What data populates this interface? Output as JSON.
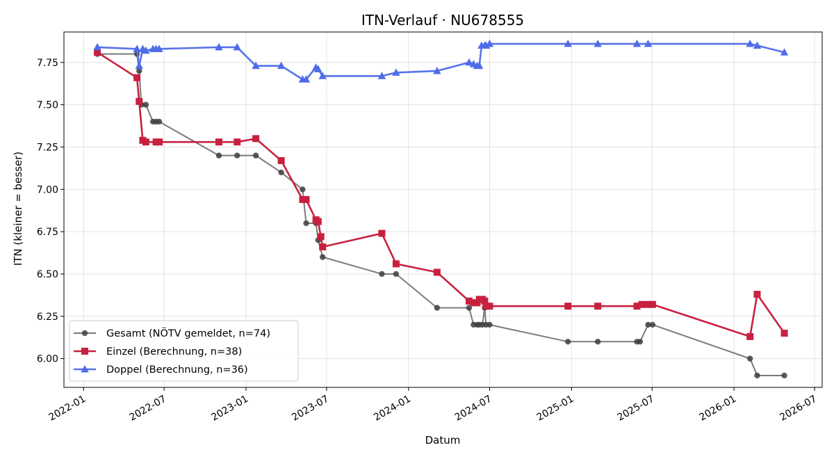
{
  "chart_data": {
    "type": "line",
    "title": "ITN-Verlauf · NU678555",
    "xlabel": "Datum",
    "ylabel": "ITN  (kleiner = besser)",
    "x_axis_type": "date",
    "xlim": [
      "2021-11-18",
      "2026-07-18"
    ],
    "ylim": [
      5.83,
      7.93
    ],
    "x_ticks": [
      {
        "date": "2022-01-01",
        "label": "2022-01"
      },
      {
        "date": "2022-07-01",
        "label": "2022-07"
      },
      {
        "date": "2023-01-01",
        "label": "2023-01"
      },
      {
        "date": "2023-07-01",
        "label": "2023-07"
      },
      {
        "date": "2024-01-01",
        "label": "2024-01"
      },
      {
        "date": "2024-07-01",
        "label": "2024-07"
      },
      {
        "date": "2025-01-01",
        "label": "2025-01"
      },
      {
        "date": "2025-07-01",
        "label": "2025-07"
      },
      {
        "date": "2026-01-01",
        "label": "2026-01"
      },
      {
        "date": "2026-07-01",
        "label": "2026-07"
      }
    ],
    "y_ticks": [
      {
        "value": 6.0,
        "label": "6.00"
      },
      {
        "value": 6.25,
        "label": "6.25"
      },
      {
        "value": 6.5,
        "label": "6.50"
      },
      {
        "value": 6.75,
        "label": "6.75"
      },
      {
        "value": 7.0,
        "label": "7.00"
      },
      {
        "value": 7.25,
        "label": "7.25"
      },
      {
        "value": 7.5,
        "label": "7.50"
      },
      {
        "value": 7.75,
        "label": "7.75"
      }
    ],
    "grid": true,
    "legend_position": "lower-left",
    "series": [
      {
        "name": "Gesamt (NÖTV gemeldet, n=74)",
        "color": "#404040",
        "line_color": "#7a7a7a",
        "marker": "circle",
        "points": [
          {
            "x": "2022-02-01",
            "y": 7.8
          },
          {
            "x": "2022-05-01",
            "y": 7.8
          },
          {
            "x": "2022-05-06",
            "y": 7.7
          },
          {
            "x": "2022-05-11",
            "y": 7.5
          },
          {
            "x": "2022-05-21",
            "y": 7.5
          },
          {
            "x": "2022-06-06",
            "y": 7.4
          },
          {
            "x": "2022-06-13",
            "y": 7.4
          },
          {
            "x": "2022-06-20",
            "y": 7.4
          },
          {
            "x": "2022-11-01",
            "y": 7.2
          },
          {
            "x": "2022-12-12",
            "y": 7.2
          },
          {
            "x": "2023-01-23",
            "y": 7.2
          },
          {
            "x": "2023-03-21",
            "y": 7.1
          },
          {
            "x": "2023-05-08",
            "y": 7.0
          },
          {
            "x": "2023-05-16",
            "y": 6.8
          },
          {
            "x": "2023-06-07",
            "y": 6.8
          },
          {
            "x": "2023-06-12",
            "y": 6.7
          },
          {
            "x": "2023-06-22",
            "y": 6.6
          },
          {
            "x": "2023-11-02",
            "y": 6.5
          },
          {
            "x": "2023-12-04",
            "y": 6.5
          },
          {
            "x": "2024-03-05",
            "y": 6.3
          },
          {
            "x": "2024-05-16",
            "y": 6.3
          },
          {
            "x": "2024-05-26",
            "y": 6.2
          },
          {
            "x": "2024-06-03",
            "y": 6.2
          },
          {
            "x": "2024-06-08",
            "y": 6.2
          },
          {
            "x": "2024-06-15",
            "y": 6.2
          },
          {
            "x": "2024-06-20",
            "y": 6.3
          },
          {
            "x": "2024-06-23",
            "y": 6.2
          },
          {
            "x": "2024-07-01",
            "y": 6.2
          },
          {
            "x": "2024-12-24",
            "y": 6.1
          },
          {
            "x": "2025-03-01",
            "y": 6.1
          },
          {
            "x": "2025-05-28",
            "y": 6.1
          },
          {
            "x": "2025-06-04",
            "y": 6.1
          },
          {
            "x": "2025-06-22",
            "y": 6.2
          },
          {
            "x": "2025-07-02",
            "y": 6.2
          },
          {
            "x": "2026-02-06",
            "y": 6.0
          },
          {
            "x": "2026-02-22",
            "y": 5.9
          },
          {
            "x": "2026-04-24",
            "y": 5.9
          }
        ]
      },
      {
        "name": "Einzel (Berechnung, n=38)",
        "color": "#c8203f",
        "line_color": "#c8203f",
        "marker": "square",
        "points": [
          {
            "x": "2022-02-01",
            "y": 7.81
          },
          {
            "x": "2022-05-01",
            "y": 7.66
          },
          {
            "x": "2022-05-06",
            "y": 7.52
          },
          {
            "x": "2022-05-14",
            "y": 7.29
          },
          {
            "x": "2022-05-21",
            "y": 7.28
          },
          {
            "x": "2022-06-13",
            "y": 7.28
          },
          {
            "x": "2022-06-20",
            "y": 7.28
          },
          {
            "x": "2022-11-01",
            "y": 7.28
          },
          {
            "x": "2022-12-12",
            "y": 7.28
          },
          {
            "x": "2023-01-23",
            "y": 7.3
          },
          {
            "x": "2023-03-21",
            "y": 7.17
          },
          {
            "x": "2023-05-08",
            "y": 6.94
          },
          {
            "x": "2023-05-16",
            "y": 6.94
          },
          {
            "x": "2023-06-07",
            "y": 6.82
          },
          {
            "x": "2023-06-12",
            "y": 6.81
          },
          {
            "x": "2023-06-18",
            "y": 6.72
          },
          {
            "x": "2023-06-22",
            "y": 6.66
          },
          {
            "x": "2023-11-02",
            "y": 6.74
          },
          {
            "x": "2023-12-04",
            "y": 6.56
          },
          {
            "x": "2024-03-05",
            "y": 6.51
          },
          {
            "x": "2024-05-16",
            "y": 6.34
          },
          {
            "x": "2024-05-26",
            "y": 6.33
          },
          {
            "x": "2024-06-03",
            "y": 6.33
          },
          {
            "x": "2024-06-08",
            "y": 6.35
          },
          {
            "x": "2024-06-15",
            "y": 6.35
          },
          {
            "x": "2024-06-20",
            "y": 6.34
          },
          {
            "x": "2024-06-23",
            "y": 6.31
          },
          {
            "x": "2024-07-01",
            "y": 6.31
          },
          {
            "x": "2024-12-24",
            "y": 6.31
          },
          {
            "x": "2025-03-01",
            "y": 6.31
          },
          {
            "x": "2025-05-28",
            "y": 6.31
          },
          {
            "x": "2025-06-08",
            "y": 6.32
          },
          {
            "x": "2025-06-22",
            "y": 6.32
          },
          {
            "x": "2025-07-02",
            "y": 6.32
          },
          {
            "x": "2026-02-06",
            "y": 6.13
          },
          {
            "x": "2026-02-22",
            "y": 6.38
          },
          {
            "x": "2026-04-24",
            "y": 6.15
          }
        ]
      },
      {
        "name": "Doppel (Berechnung, n=36)",
        "color": "#4f6ce8",
        "line_color": "#5672ea",
        "marker": "triangle",
        "points": [
          {
            "x": "2022-02-01",
            "y": 7.84
          },
          {
            "x": "2022-05-01",
            "y": 7.83
          },
          {
            "x": "2022-05-06",
            "y": 7.73
          },
          {
            "x": "2022-05-14",
            "y": 7.83
          },
          {
            "x": "2022-05-21",
            "y": 7.82
          },
          {
            "x": "2022-06-06",
            "y": 7.83
          },
          {
            "x": "2022-06-13",
            "y": 7.83
          },
          {
            "x": "2022-06-20",
            "y": 7.83
          },
          {
            "x": "2022-11-01",
            "y": 7.84
          },
          {
            "x": "2022-12-12",
            "y": 7.84
          },
          {
            "x": "2023-01-23",
            "y": 7.73
          },
          {
            "x": "2023-03-21",
            "y": 7.73
          },
          {
            "x": "2023-05-08",
            "y": 7.65
          },
          {
            "x": "2023-05-16",
            "y": 7.65
          },
          {
            "x": "2023-06-07",
            "y": 7.72
          },
          {
            "x": "2023-06-12",
            "y": 7.71
          },
          {
            "x": "2023-06-22",
            "y": 7.67
          },
          {
            "x": "2023-11-02",
            "y": 7.67
          },
          {
            "x": "2023-12-04",
            "y": 7.69
          },
          {
            "x": "2024-03-05",
            "y": 7.7
          },
          {
            "x": "2024-05-16",
            "y": 7.75
          },
          {
            "x": "2024-05-26",
            "y": 7.74
          },
          {
            "x": "2024-06-03",
            "y": 7.73
          },
          {
            "x": "2024-06-08",
            "y": 7.73
          },
          {
            "x": "2024-06-13",
            "y": 7.85
          },
          {
            "x": "2024-06-20",
            "y": 7.85
          },
          {
            "x": "2024-06-23",
            "y": 7.85
          },
          {
            "x": "2024-07-01",
            "y": 7.86
          },
          {
            "x": "2024-12-24",
            "y": 7.86
          },
          {
            "x": "2025-03-01",
            "y": 7.86
          },
          {
            "x": "2025-05-28",
            "y": 7.86
          },
          {
            "x": "2025-06-22",
            "y": 7.86
          },
          {
            "x": "2026-02-06",
            "y": 7.86
          },
          {
            "x": "2026-02-22",
            "y": 7.85
          },
          {
            "x": "2026-04-24",
            "y": 7.81
          }
        ]
      }
    ]
  }
}
